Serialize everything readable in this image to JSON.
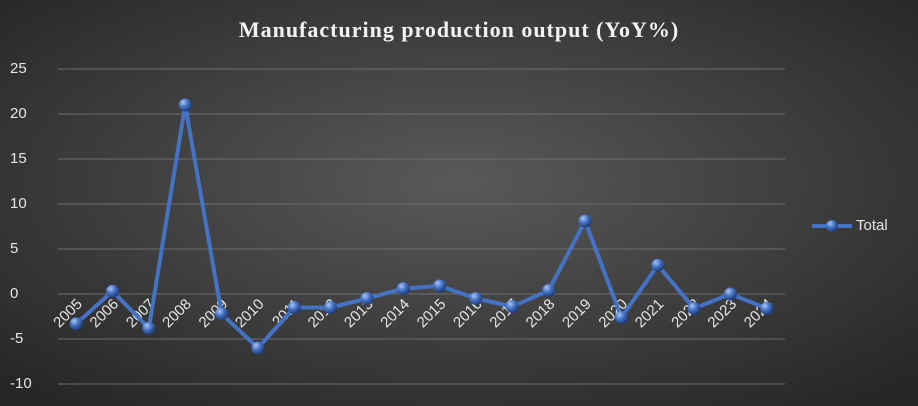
{
  "chart_data": {
    "type": "line",
    "title": "Manufacturing production output (YoY%)",
    "categories": [
      "2005",
      "2006",
      "2007",
      "2008",
      "2009",
      "2010",
      "2011",
      "2012",
      "2013",
      "2014",
      "2015",
      "2016",
      "2017",
      "2018",
      "2019",
      "2020",
      "2021",
      "2022",
      "2023",
      "2024"
    ],
    "series": [
      {
        "name": "Total",
        "color": "#4472c4",
        "values": [
          -3.3,
          0.3,
          -3.8,
          21,
          -2.2,
          -6,
          -1.5,
          -1.5,
          -0.5,
          0.6,
          0.9,
          -0.5,
          -1.4,
          0.4,
          8.1,
          -2.6,
          3.2,
          -1.6,
          0,
          -1.6
        ]
      }
    ],
    "ylim": [
      -10,
      25
    ],
    "yticks": [
      -10,
      -5,
      0,
      5,
      10,
      15,
      20,
      25
    ],
    "grid": true,
    "legend": "right"
  }
}
